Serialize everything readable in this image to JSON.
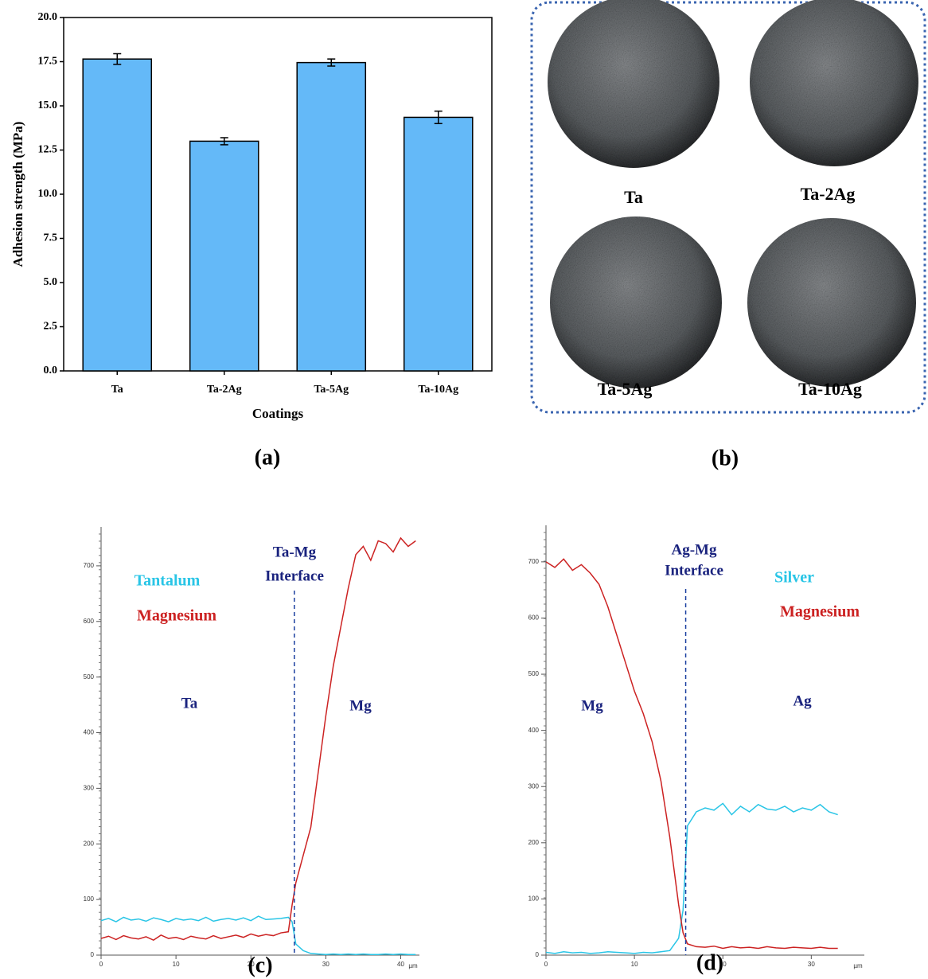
{
  "chart_data": [
    {
      "type": "bar",
      "panel_label": "(a)",
      "xlabel": "Coatings",
      "ylabel": "Adhesion strength (MPa)",
      "categories": [
        "Ta",
        "Ta-2Ag",
        "Ta-5Ag",
        "Ta-10Ag"
      ],
      "values": [
        17.65,
        13.0,
        17.45,
        14.35
      ],
      "errors": [
        0.3,
        0.2,
        0.2,
        0.35
      ],
      "color": "#64b9f8",
      "ylim": [
        0,
        20
      ],
      "yticks": [
        {
          "value": 0,
          "label": "0.0"
        },
        2.5,
        {
          "value": 5,
          "label": "5.0"
        },
        7.5,
        {
          "value": 10,
          "label": "10.0"
        },
        12.5,
        {
          "value": 15,
          "label": "15.0"
        },
        17.5,
        {
          "value": 20,
          "label": "20.0"
        }
      ]
    },
    {
      "type": "line",
      "panel_label": "(c)",
      "xlabel": "µm",
      "xlim": [
        0,
        42.5
      ],
      "ylim": [
        0,
        770
      ],
      "xticks": [
        0,
        10,
        20,
        30,
        40
      ],
      "yticks": [
        0,
        100,
        200,
        300,
        400,
        500,
        600,
        700
      ],
      "interface_x": 25.8,
      "interface_label": [
        "Ta-Mg",
        "Interface"
      ],
      "annotations": [
        "Ta",
        "Mg"
      ],
      "x": [
        0,
        1,
        2,
        3,
        4,
        5,
        6,
        7,
        8,
        9,
        10,
        11,
        12,
        13,
        14,
        15,
        16,
        17,
        18,
        19,
        20,
        21,
        22,
        23,
        24,
        25,
        25.5,
        26,
        27,
        28,
        29,
        30,
        31,
        32,
        33,
        34,
        35,
        36,
        37,
        38,
        39,
        40,
        41,
        42
      ],
      "series": [
        {
          "name": "Tantalum",
          "color": "#29c5e6",
          "values": [
            62,
            66,
            60,
            68,
            63,
            65,
            61,
            67,
            64,
            60,
            66,
            63,
            65,
            62,
            68,
            61,
            64,
            66,
            63,
            67,
            62,
            70,
            64,
            65,
            66,
            68,
            60,
            20,
            8,
            3,
            2,
            1,
            2,
            1,
            2,
            1,
            2,
            1,
            1,
            2,
            1,
            2,
            1,
            1
          ]
        },
        {
          "name": "Magnesium",
          "color": "#cc2222",
          "values": [
            30,
            34,
            28,
            35,
            31,
            29,
            33,
            27,
            36,
            30,
            32,
            28,
            34,
            31,
            29,
            35,
            30,
            33,
            36,
            32,
            38,
            34,
            37,
            35,
            40,
            42,
            90,
            130,
            180,
            230,
            330,
            430,
            520,
            590,
            660,
            720,
            735,
            710,
            745,
            740,
            725,
            750,
            735,
            745
          ]
        }
      ]
    },
    {
      "type": "line",
      "panel_label": "(d)",
      "xlabel": "µm",
      "xlim": [
        0,
        36
      ],
      "ylim": [
        0,
        765
      ],
      "xticks": [
        0,
        10,
        20,
        30
      ],
      "yticks": [
        0,
        100,
        200,
        300,
        400,
        500,
        600,
        700
      ],
      "interface_x": 15.8,
      "interface_label": [
        "Ag-Mg",
        "Interface"
      ],
      "annotations": [
        "Mg",
        "Ag"
      ],
      "x": [
        0,
        1,
        2,
        3,
        4,
        5,
        6,
        7,
        8,
        9,
        10,
        11,
        12,
        13,
        14,
        15,
        15.5,
        16,
        17,
        18,
        19,
        20,
        21,
        22,
        23,
        24,
        25,
        26,
        27,
        28,
        29,
        30,
        31,
        32,
        33
      ],
      "series": [
        {
          "name": "Silver",
          "color": "#29c5e6",
          "values": [
            5,
            3,
            6,
            4,
            5,
            3,
            4,
            6,
            5,
            4,
            3,
            5,
            4,
            6,
            8,
            30,
            80,
            230,
            255,
            262,
            258,
            270,
            250,
            265,
            255,
            268,
            260,
            258,
            265,
            255,
            262,
            258,
            268,
            255,
            250
          ]
        },
        {
          "name": "Magnesium",
          "color": "#cc2222",
          "values": [
            700,
            690,
            705,
            685,
            695,
            680,
            660,
            620,
            570,
            520,
            470,
            430,
            380,
            310,
            210,
            90,
            40,
            20,
            15,
            14,
            16,
            12,
            15,
            13,
            14,
            12,
            15,
            13,
            12,
            14,
            13,
            12,
            14,
            12,
            12
          ]
        }
      ]
    }
  ],
  "photos": {
    "panel_label": "(b)",
    "labels": [
      "Ta",
      "Ta-2Ag",
      "Ta-5Ag",
      "Ta-10Ag"
    ]
  }
}
